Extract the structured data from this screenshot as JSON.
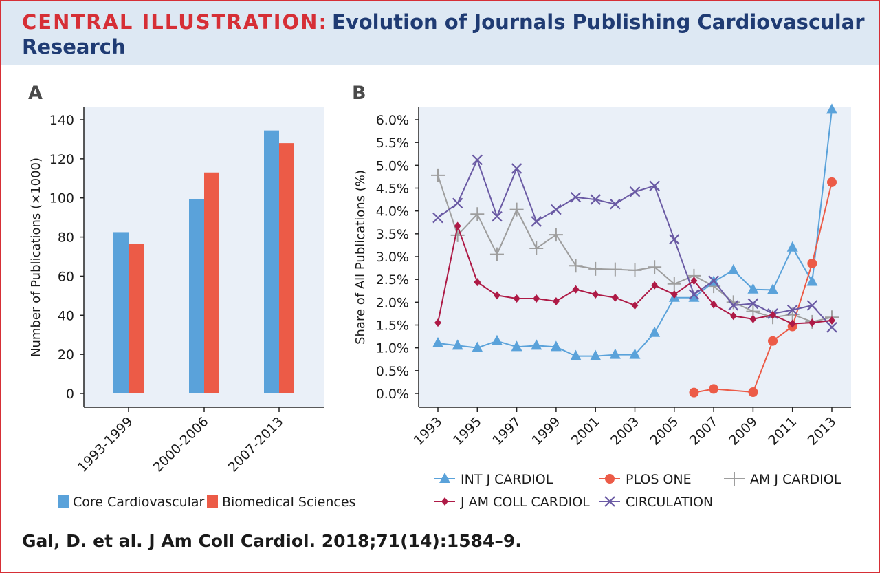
{
  "header": {
    "label": "CENTRAL ILLUSTRATION:",
    "title": "Evolution of Journals Publishing Cardiovascular Research"
  },
  "panels": {
    "a": "A",
    "b": "B"
  },
  "citation": "Gal, D. et al. J Am Coll Cardiol. 2018;71(14):1584–9.",
  "colors": {
    "core": "#5aa2da",
    "biomed": "#ec5b47",
    "plot_bg": "#eaf0f8",
    "int_j_cardiol": "#5aa2da",
    "plos_one": "#ec5b47",
    "am_j_cardiol": "#9e9e9e",
    "j_am_coll_cardiol": "#ae1a46",
    "circulation": "#6a5aa4"
  },
  "chart_data": [
    {
      "type": "bar",
      "panel": "A",
      "categories": [
        "1993-1999",
        "2000-2006",
        "2007-2013"
      ],
      "series": [
        {
          "name": "Core Cardiovascular",
          "values": [
            82.5,
            99.5,
            134.5
          ]
        },
        {
          "name": "Biomedical Sciences",
          "values": [
            76.5,
            113,
            128
          ]
        }
      ],
      "ylabel": "Number of Publications (×1000)",
      "ylim": [
        0,
        140
      ],
      "yticks": [
        "0",
        "20",
        "40",
        "60",
        "80",
        "100",
        "120",
        "140"
      ],
      "legend": [
        "Core Cardiovascular",
        "Biomedical Sciences"
      ],
      "legend_position": "bottom"
    },
    {
      "type": "line",
      "panel": "B",
      "x": [
        1993,
        1994,
        1995,
        1996,
        1997,
        1998,
        1999,
        2000,
        2001,
        2002,
        2003,
        2004,
        2005,
        2006,
        2007,
        2008,
        2009,
        2010,
        2011,
        2012,
        2013
      ],
      "xticks": [
        "1993",
        "1995",
        "1997",
        "1999",
        "2001",
        "2003",
        "2005",
        "2007",
        "2009",
        "2011",
        "2013"
      ],
      "ylabel": "Share of All Publications (%)",
      "ylim": [
        0,
        6
      ],
      "yticks": [
        "0.0%",
        "0.5%",
        "1.0%",
        "1.5%",
        "2.0%",
        "2.5%",
        "3.0%",
        "3.5%",
        "4.0%",
        "4.5%",
        "5.0%",
        "5.5%",
        "6.0%"
      ],
      "series": [
        {
          "name": "INT J CARDIOL",
          "marker": "triangle",
          "x": [
            1993,
            1994,
            1995,
            1996,
            1997,
            1998,
            1999,
            2000,
            2001,
            2002,
            2003,
            2004,
            2005,
            2006,
            2007,
            2008,
            2009,
            2010,
            2011,
            2012,
            2013
          ],
          "values": [
            1.1,
            1.05,
            1.0,
            1.15,
            1.02,
            1.05,
            1.02,
            0.82,
            0.82,
            0.85,
            0.85,
            1.33,
            2.1,
            2.1,
            2.45,
            2.7,
            2.28,
            2.27,
            3.2,
            2.45,
            6.22
          ]
        },
        {
          "name": "PLOS ONE",
          "marker": "circle",
          "x": [
            2006,
            2007,
            2009,
            2010,
            2011,
            2012,
            2013
          ],
          "values": [
            0.02,
            0.1,
            0.03,
            1.15,
            1.47,
            2.85,
            4.63
          ]
        },
        {
          "name": "AM J CARDIOL",
          "marker": "plus",
          "x": [
            1993,
            1994,
            1995,
            1996,
            1997,
            1998,
            1999,
            2000,
            2001,
            2002,
            2003,
            2004,
            2005,
            2006,
            2007,
            2008,
            2009,
            2010,
            2011,
            2012,
            2013
          ],
          "values": [
            4.78,
            3.47,
            3.93,
            3.05,
            4.03,
            3.18,
            3.48,
            2.8,
            2.73,
            2.72,
            2.7,
            2.77,
            2.4,
            2.58,
            2.35,
            2.0,
            1.8,
            1.67,
            1.73,
            1.57,
            1.67
          ]
        },
        {
          "name": "J AM COLL CARDIOL",
          "marker": "diamond",
          "x": [
            1993,
            1994,
            1995,
            1996,
            1997,
            1998,
            1999,
            2000,
            2001,
            2002,
            2003,
            2004,
            2005,
            2006,
            2007,
            2008,
            2009,
            2010,
            2011,
            2012,
            2013
          ],
          "values": [
            1.55,
            3.67,
            2.44,
            2.15,
            2.08,
            2.08,
            2.02,
            2.28,
            2.17,
            2.1,
            1.93,
            2.37,
            2.17,
            2.47,
            1.95,
            1.7,
            1.63,
            1.72,
            1.53,
            1.55,
            1.6
          ]
        },
        {
          "name": "CIRCULATION",
          "marker": "x",
          "x": [
            1993,
            1994,
            1995,
            1996,
            1997,
            1998,
            1999,
            2000,
            2001,
            2002,
            2003,
            2004,
            2005,
            2006,
            2007,
            2008,
            2009,
            2010,
            2011,
            2012,
            2013
          ],
          "values": [
            3.85,
            4.17,
            5.12,
            3.88,
            4.93,
            3.77,
            4.03,
            4.3,
            4.25,
            4.15,
            4.42,
            4.55,
            3.38,
            2.17,
            2.47,
            1.93,
            1.97,
            1.75,
            1.83,
            1.93,
            1.45
          ]
        }
      ],
      "legend_position": "bottom"
    }
  ]
}
